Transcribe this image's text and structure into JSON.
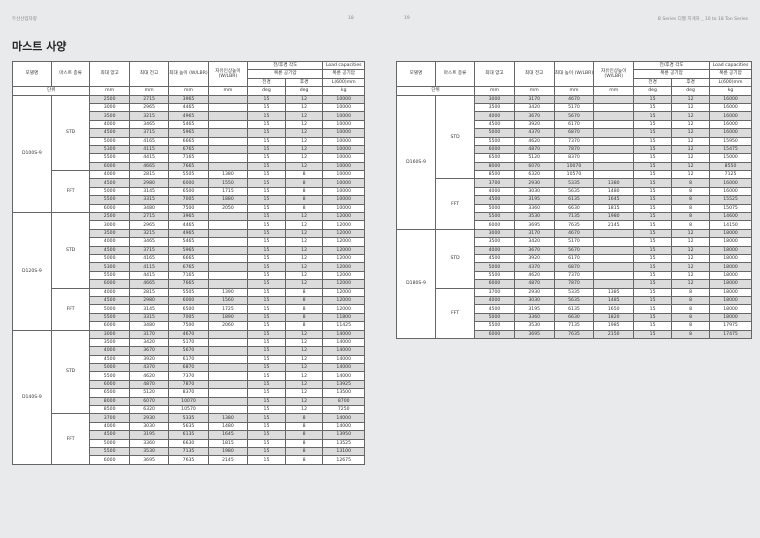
{
  "header": {
    "left_text": "두산산업차량",
    "page_left": "18",
    "page_right": "19",
    "right_text": "B Series 디젤 지게차 _ 10 to 18 Ton Series"
  },
  "title": "마스트 사양",
  "columns": {
    "model": "모델명",
    "mast_type": "마스트 종류",
    "max_lift": "최대 양고",
    "overall_lowered": "최대 전고",
    "overall_extended": "최대 높이 (W/LBR)",
    "free_lift": "자유인상높이 (W/LBR)",
    "tilt": "전/후경 각도",
    "tilt_sub": "복륜 공기압",
    "forward": "전경",
    "backward": "후경",
    "load": "Load capacities",
    "load_sub": "복륜 공기압",
    "load_center": "L(600)mm"
  },
  "units": {
    "label": "단위",
    "values": [
      "mm",
      "mm",
      "mm",
      "mm",
      "deg",
      "deg",
      "kg"
    ]
  },
  "tables": [
    {
      "models": [
        {
          "name": "D100S-9",
          "groups": [
            {
              "type": "STD",
              "rows": [
                [
                  "2500",
                  "2715",
                  "3965",
                  "",
                  "15",
                  "12",
                  "10000"
                ],
                [
                  "3000",
                  "2965",
                  "4465",
                  "",
                  "15",
                  "12",
                  "10000"
                ],
                [
                  "3500",
                  "3215",
                  "4965",
                  "",
                  "15",
                  "12",
                  "10000"
                ],
                [
                  "4000",
                  "3465",
                  "5465",
                  "",
                  "15",
                  "12",
                  "10000"
                ],
                [
                  "4500",
                  "3715",
                  "5965",
                  "",
                  "15",
                  "12",
                  "10000"
                ],
                [
                  "5000",
                  "4165",
                  "6665",
                  "",
                  "15",
                  "12",
                  "10000"
                ],
                [
                  "5300",
                  "4115",
                  "6765",
                  "",
                  "15",
                  "12",
                  "10000"
                ],
                [
                  "5500",
                  "4415",
                  "7165",
                  "",
                  "15",
                  "12",
                  "10000"
                ],
                [
                  "6000",
                  "4665",
                  "7665",
                  "",
                  "15",
                  "12",
                  "10000"
                ]
              ]
            },
            {
              "type": "FFT",
              "rows": [
                [
                  "4000",
                  "2815",
                  "5505",
                  "1380",
                  "15",
                  "8",
                  "10000"
                ],
                [
                  "4500",
                  "2980",
                  "6000",
                  "1550",
                  "15",
                  "8",
                  "10000"
                ],
                [
                  "5000",
                  "3145",
                  "6500",
                  "1715",
                  "15",
                  "8",
                  "10000"
                ],
                [
                  "5500",
                  "3315",
                  "7005",
                  "1880",
                  "15",
                  "8",
                  "10000"
                ],
                [
                  "6000",
                  "3480",
                  "7500",
                  "2050",
                  "15",
                  "8",
                  "10000"
                ]
              ]
            }
          ]
        },
        {
          "name": "D120S-9",
          "groups": [
            {
              "type": "STD",
              "rows": [
                [
                  "2500",
                  "2715",
                  "3965",
                  "",
                  "15",
                  "12",
                  "12000"
                ],
                [
                  "3000",
                  "2965",
                  "4465",
                  "",
                  "15",
                  "12",
                  "12000"
                ],
                [
                  "3500",
                  "3215",
                  "4965",
                  "",
                  "15",
                  "12",
                  "12000"
                ],
                [
                  "4000",
                  "3465",
                  "5465",
                  "",
                  "15",
                  "12",
                  "12000"
                ],
                [
                  "4500",
                  "3715",
                  "5965",
                  "",
                  "15",
                  "12",
                  "12000"
                ],
                [
                  "5000",
                  "4165",
                  "6665",
                  "",
                  "15",
                  "12",
                  "12000"
                ],
                [
                  "5300",
                  "4115",
                  "6765",
                  "",
                  "15",
                  "12",
                  "12000"
                ],
                [
                  "5500",
                  "4415",
                  "7165",
                  "",
                  "15",
                  "12",
                  "12000"
                ],
                [
                  "6000",
                  "4665",
                  "7665",
                  "",
                  "15",
                  "12",
                  "12000"
                ]
              ]
            },
            {
              "type": "FFT",
              "rows": [
                [
                  "4000",
                  "2815",
                  "5505",
                  "1390",
                  "15",
                  "8",
                  "12000"
                ],
                [
                  "4500",
                  "2980",
                  "6000",
                  "1560",
                  "15",
                  "8",
                  "12000"
                ],
                [
                  "5000",
                  "3145",
                  "6500",
                  "1725",
                  "15",
                  "8",
                  "12000"
                ],
                [
                  "5500",
                  "3315",
                  "7005",
                  "1890",
                  "15",
                  "8",
                  "11800"
                ],
                [
                  "6000",
                  "3480",
                  "7500",
                  "2060",
                  "15",
                  "8",
                  "11425"
                ]
              ]
            }
          ]
        },
        {
          "name": "D140S-9",
          "groups": [
            {
              "type": "STD",
              "rows": [
                [
                  "3000",
                  "3170",
                  "4670",
                  "",
                  "15",
                  "12",
                  "14000"
                ],
                [
                  "3500",
                  "3420",
                  "5170",
                  "",
                  "15",
                  "12",
                  "14000"
                ],
                [
                  "4000",
                  "3670",
                  "5670",
                  "",
                  "15",
                  "12",
                  "14000"
                ],
                [
                  "4500",
                  "3920",
                  "6170",
                  "",
                  "15",
                  "12",
                  "14000"
                ],
                [
                  "5000",
                  "4370",
                  "6870",
                  "",
                  "15",
                  "12",
                  "14000"
                ],
                [
                  "5500",
                  "4620",
                  "7370",
                  "",
                  "15",
                  "12",
                  "14000"
                ],
                [
                  "6000",
                  "4870",
                  "7870",
                  "",
                  "15",
                  "12",
                  "13925"
                ],
                [
                  "6500",
                  "5120",
                  "8370",
                  "",
                  "15",
                  "12",
                  "13500"
                ],
                [
                  "8000",
                  "6070",
                  "10070",
                  "",
                  "15",
                  "12",
                  "8700"
                ],
                [
                  "8500",
                  "6320",
                  "10570",
                  "",
                  "15",
                  "12",
                  "7250"
                ]
              ]
            },
            {
              "type": "FFT",
              "rows": [
                [
                  "3700",
                  "2930",
                  "5335",
                  "1380",
                  "15",
                  "8",
                  "14000"
                ],
                [
                  "4000",
                  "3030",
                  "5635",
                  "1480",
                  "15",
                  "8",
                  "14000"
                ],
                [
                  "4500",
                  "3195",
                  "6135",
                  "1645",
                  "15",
                  "8",
                  "13950"
                ],
                [
                  "5000",
                  "3360",
                  "6630",
                  "1815",
                  "15",
                  "8",
                  "13525"
                ],
                [
                  "5500",
                  "3530",
                  "7135",
                  "1980",
                  "15",
                  "8",
                  "13100"
                ],
                [
                  "6000",
                  "3695",
                  "7635",
                  "2145",
                  "15",
                  "8",
                  "12675"
                ]
              ]
            }
          ]
        }
      ]
    },
    {
      "models": [
        {
          "name": "D160S-9",
          "groups": [
            {
              "type": "STD",
              "rows": [
                [
                  "3000",
                  "3170",
                  "4670",
                  "",
                  "15",
                  "12",
                  "16000"
                ],
                [
                  "3500",
                  "3420",
                  "5170",
                  "",
                  "15",
                  "12",
                  "16000"
                ],
                [
                  "4000",
                  "3670",
                  "5670",
                  "",
                  "15",
                  "12",
                  "16000"
                ],
                [
                  "4500",
                  "3920",
                  "6170",
                  "",
                  "15",
                  "12",
                  "16000"
                ],
                [
                  "5000",
                  "4370",
                  "6870",
                  "",
                  "15",
                  "12",
                  "16000"
                ],
                [
                  "5500",
                  "4620",
                  "7370",
                  "",
                  "15",
                  "12",
                  "15950"
                ],
                [
                  "6000",
                  "4870",
                  "7870",
                  "",
                  "15",
                  "12",
                  "15475"
                ],
                [
                  "6500",
                  "5120",
                  "8370",
                  "",
                  "15",
                  "12",
                  "15000"
                ],
                [
                  "8000",
                  "6070",
                  "10070",
                  "",
                  "15",
                  "12",
                  "8550"
                ],
                [
                  "8500",
                  "6320",
                  "10570",
                  "",
                  "15",
                  "12",
                  "7125"
                ]
              ]
            },
            {
              "type": "FFT",
              "rows": [
                [
                  "3700",
                  "2930",
                  "5335",
                  "1380",
                  "15",
                  "8",
                  "16000"
                ],
                [
                  "4000",
                  "3030",
                  "5635",
                  "1480",
                  "15",
                  "8",
                  "16000"
                ],
                [
                  "4500",
                  "3195",
                  "6135",
                  "1645",
                  "15",
                  "8",
                  "15525"
                ],
                [
                  "5000",
                  "3360",
                  "6630",
                  "1815",
                  "15",
                  "8",
                  "15075"
                ],
                [
                  "5500",
                  "3530",
                  "7135",
                  "1980",
                  "15",
                  "8",
                  "14600"
                ],
                [
                  "6000",
                  "3695",
                  "7635",
                  "2145",
                  "15",
                  "8",
                  "14150"
                ]
              ]
            }
          ]
        },
        {
          "name": "D180S-9",
          "groups": [
            {
              "type": "STD",
              "rows": [
                [
                  "3000",
                  "3170",
                  "4670",
                  "",
                  "15",
                  "12",
                  "18000"
                ],
                [
                  "3500",
                  "3420",
                  "5170",
                  "",
                  "15",
                  "12",
                  "18000"
                ],
                [
                  "4000",
                  "3670",
                  "5670",
                  "",
                  "15",
                  "12",
                  "18000"
                ],
                [
                  "4500",
                  "3920",
                  "6170",
                  "",
                  "15",
                  "12",
                  "18000"
                ],
                [
                  "5000",
                  "4370",
                  "6870",
                  "",
                  "15",
                  "12",
                  "18000"
                ],
                [
                  "5500",
                  "4620",
                  "7370",
                  "",
                  "15",
                  "12",
                  "18000"
                ],
                [
                  "6000",
                  "4870",
                  "7870",
                  "",
                  "15",
                  "12",
                  "18000"
                ]
              ]
            },
            {
              "type": "FFT",
              "rows": [
                [
                  "3700",
                  "2930",
                  "5335",
                  "1385",
                  "15",
                  "8",
                  "18000"
                ],
                [
                  "4000",
                  "3030",
                  "5635",
                  "1485",
                  "15",
                  "8",
                  "18000"
                ],
                [
                  "4500",
                  "3195",
                  "6135",
                  "1650",
                  "15",
                  "8",
                  "18000"
                ],
                [
                  "5000",
                  "3360",
                  "6630",
                  "1820",
                  "15",
                  "8",
                  "18000"
                ],
                [
                  "5500",
                  "3530",
                  "7135",
                  "1985",
                  "15",
                  "8",
                  "17975"
                ],
                [
                  "6000",
                  "3695",
                  "7635",
                  "2150",
                  "15",
                  "8",
                  "17475"
                ]
              ]
            }
          ]
        }
      ]
    }
  ]
}
